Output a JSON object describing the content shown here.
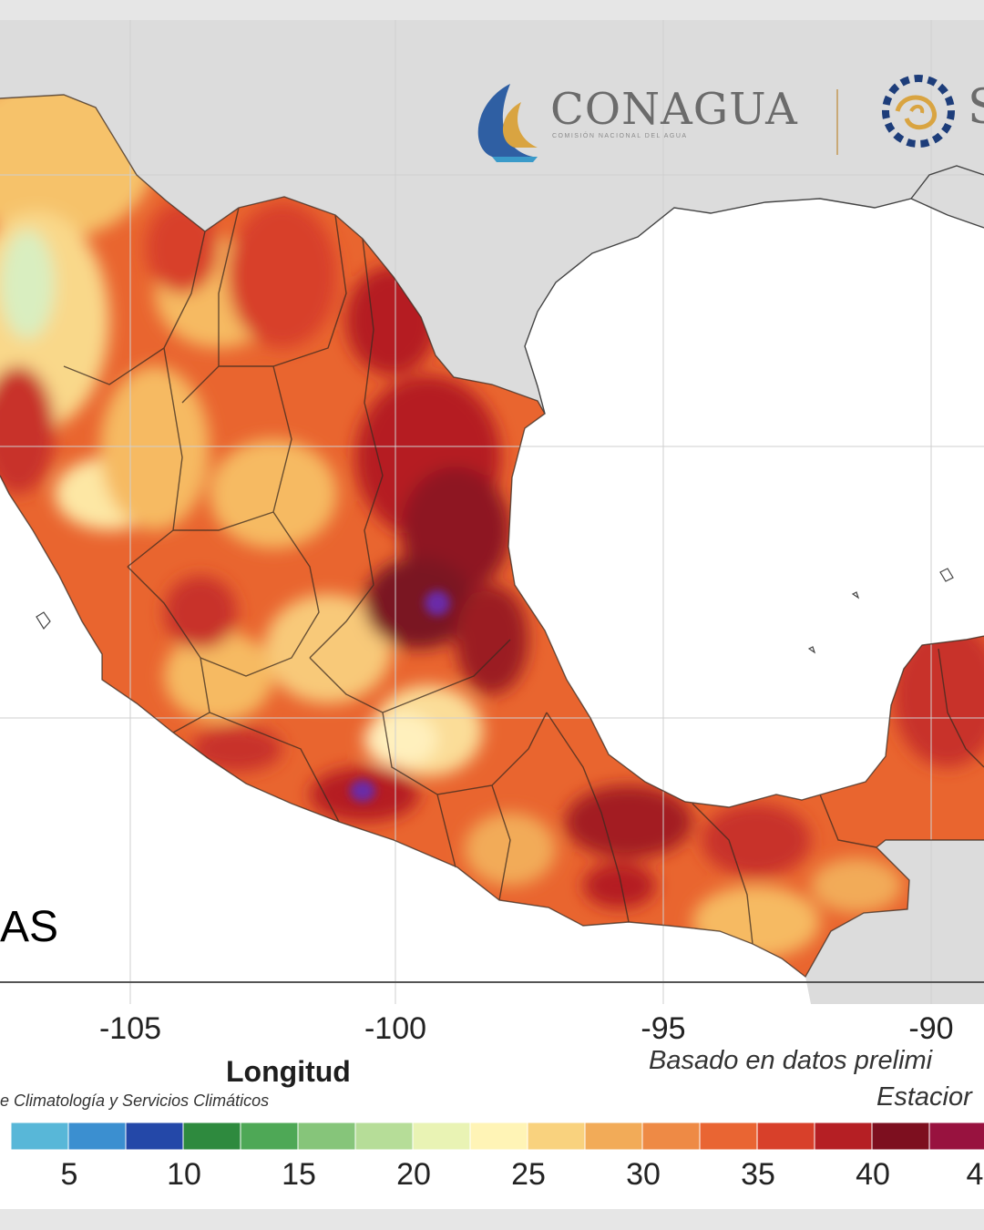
{
  "header": {
    "logo_name": "CONAGUA",
    "logo_subtitle": "COMISIÓN NACIONAL DEL AGUA",
    "partner_logo_letter": "S"
  },
  "overlay_text": "AS",
  "axis": {
    "xlabel": "Longitud",
    "ticks": [
      "-105",
      "-100",
      "-95",
      "-90"
    ]
  },
  "credits": {
    "left": "e Climatología y Servicios Climáticos",
    "right_line1": "Basado en datos prelimi",
    "right_line2": "Estacior"
  },
  "colorbar": {
    "labels": [
      "5",
      "10",
      "15",
      "20",
      "25",
      "30",
      "35",
      "40",
      "4"
    ],
    "colors": [
      "#58b7d8",
      "#3b8fd0",
      "#2448a8",
      "#2e8a3e",
      "#4ea856",
      "#86c57a",
      "#b6dd98",
      "#e9f3b4",
      "#fff4b6",
      "#f9d27e",
      "#f2ab58",
      "#ee8a45",
      "#e96533",
      "#d8402a",
      "#b51f24",
      "#7d0f1f",
      "#98123f"
    ]
  },
  "map_colors": {
    "ocean": "#ffffff",
    "land_outside": "#dcdcdc",
    "heat_base": "#e9652f",
    "heat_hot": "#c8302a",
    "heat_extreme": "#7a1320",
    "heat_mild": "#f6ba62",
    "heat_cool": "#fde7a4",
    "borders": "#3a2a20"
  }
}
